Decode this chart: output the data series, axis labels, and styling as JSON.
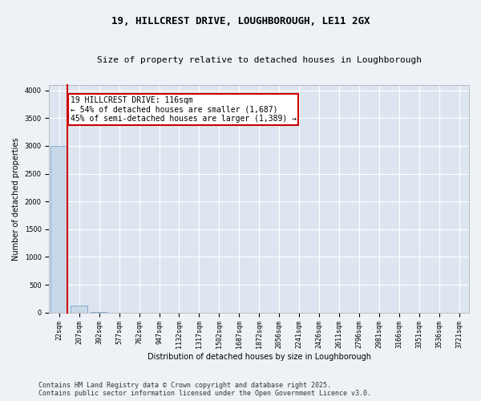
{
  "title_line1": "19, HILLCREST DRIVE, LOUGHBOROUGH, LE11 2GX",
  "title_line2": "Size of property relative to detached houses in Loughborough",
  "xlabel": "Distribution of detached houses by size in Loughborough",
  "ylabel": "Number of detached properties",
  "bar_color": "#c8d8e8",
  "bar_edge_color": "#6699cc",
  "annotation_box_color": "#cc0000",
  "property_line_color": "#cc0000",
  "categories": [
    "22sqm",
    "207sqm",
    "392sqm",
    "577sqm",
    "762sqm",
    "947sqm",
    "1132sqm",
    "1317sqm",
    "1502sqm",
    "1687sqm",
    "1872sqm",
    "2056sqm",
    "2241sqm",
    "2426sqm",
    "2611sqm",
    "2796sqm",
    "2981sqm",
    "3166sqm",
    "3351sqm",
    "3536sqm",
    "3721sqm"
  ],
  "values": [
    3000,
    120,
    5,
    2,
    1,
    1,
    1,
    1,
    1,
    1,
    1,
    1,
    1,
    1,
    1,
    1,
    1,
    1,
    1,
    1,
    1
  ],
  "ylim": [
    0,
    4100
  ],
  "yticks": [
    0,
    500,
    1000,
    1500,
    2000,
    2500,
    3000,
    3500,
    4000
  ],
  "annotation_text": "19 HILLCREST DRIVE: 116sqm\n← 54% of detached houses are smaller (1,687)\n45% of semi-detached houses are larger (1,389) →",
  "footer_line1": "Contains HM Land Registry data © Crown copyright and database right 2025.",
  "footer_line2": "Contains public sector information licensed under the Open Government Licence v3.0.",
  "background_color": "#eef2f7",
  "plot_bg_color": "#dde6f0",
  "grid_color": "#ffffff",
  "title_fontsize": 9,
  "subtitle_fontsize": 8,
  "axis_label_fontsize": 7,
  "tick_fontsize": 6,
  "annotation_fontsize": 7,
  "footer_fontsize": 6
}
